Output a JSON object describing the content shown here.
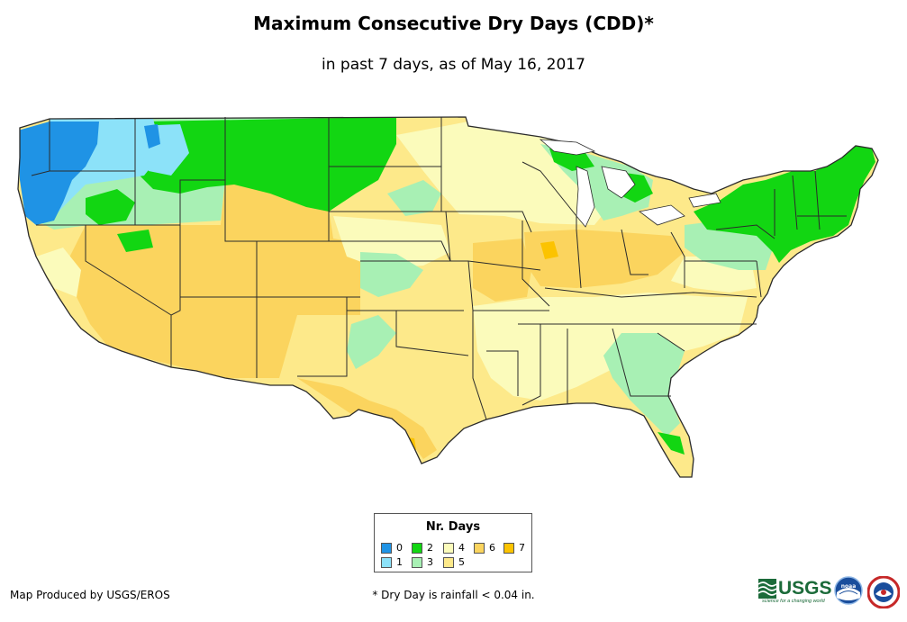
{
  "header": {
    "title": "Maximum Consecutive Dry Days (CDD)*",
    "subtitle": "in past 7 days, as of May 16, 2017"
  },
  "legend": {
    "title": "Nr. Days",
    "items": [
      {
        "label": "0",
        "color": "#1f93e5"
      },
      {
        "label": "1",
        "color": "#8ce2f9"
      },
      {
        "label": "2",
        "color": "#12d612"
      },
      {
        "label": "3",
        "color": "#a8f0b4"
      },
      {
        "label": "4",
        "color": "#fbfbbb"
      },
      {
        "label": "5",
        "color": "#fde98a"
      },
      {
        "label": "6",
        "color": "#fbd45e"
      },
      {
        "label": "7",
        "color": "#fcc300"
      }
    ]
  },
  "footer": {
    "credit": "Map Produced by USGS/EROS",
    "footnote": "* Dry Day is rainfall < 0.04 in."
  },
  "logos": {
    "usgs": "USGS",
    "usgs_tagline": "science for a changing world",
    "noaa": "noaa"
  },
  "colors": {
    "state_line": "#2b2b2b",
    "usgs_green": "#1c6b3a",
    "noaa_blue": "#1a4e9c"
  }
}
